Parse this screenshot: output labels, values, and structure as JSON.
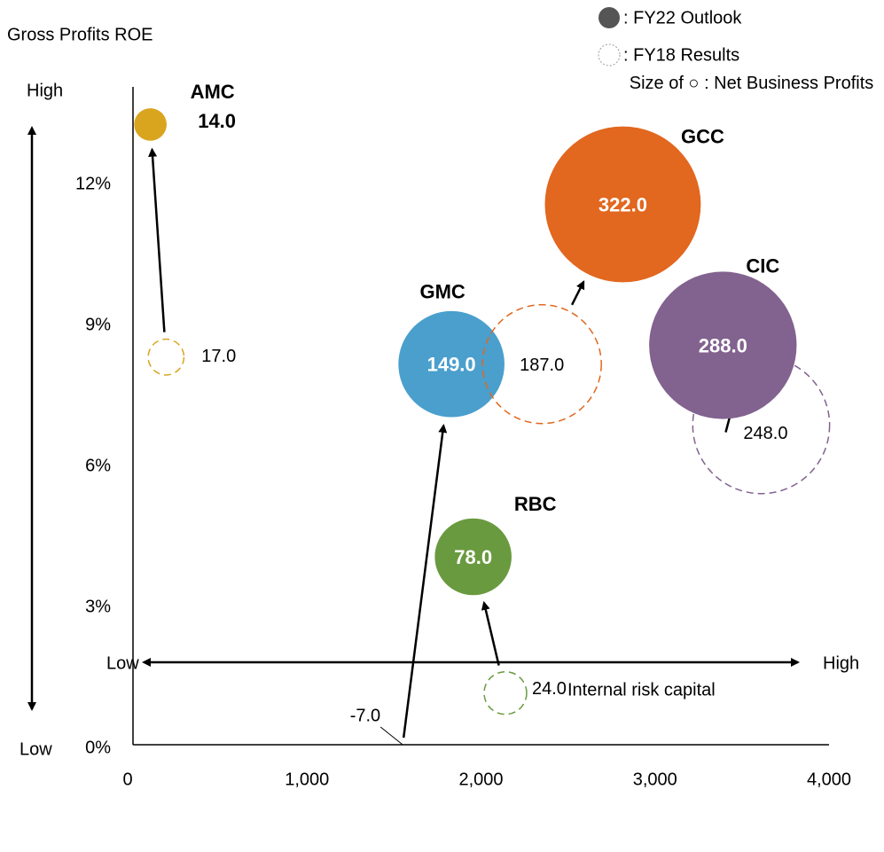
{
  "chart_data": {
    "type": "bubble",
    "y_label": "Gross Profits ROE",
    "x_label": "Internal risk capital",
    "y_high": "High",
    "y_low": "Low",
    "x_low": "Low",
    "x_high": "High",
    "size_legend": "Size of ○ : Net Business Profits",
    "categories": [
      "AMC",
      "GMC",
      "GCC",
      "CIC",
      "RBC"
    ],
    "colors": [
      "#d9a51f",
      "#4a9fcd",
      "#e2671f",
      "#82628f",
      "#6a9a3f"
    ],
    "xlim": [
      0,
      4000
    ],
    "xticks": [
      0,
      {
        "value": 1000,
        "label": "1,000"
      },
      {
        "value": 2000,
        "label": "2,000"
      },
      {
        "value": 3000,
        "label": "3,000"
      },
      {
        "value": 4000,
        "label": "4,000"
      }
    ],
    "ylim": [
      0,
      14
    ],
    "yticks": [
      {
        "value": 0,
        "label": "0%"
      },
      {
        "value": 3,
        "label": "3%"
      },
      {
        "value": 6,
        "label": "6%"
      },
      {
        "value": 9,
        "label": "9%"
      },
      {
        "value": 12,
        "label": "12%"
      }
    ],
    "series": [
      {
        "name": ": FY22 Outlook",
        "style": "filled",
        "x": [
          100,
          1830,
          2815,
          3390,
          1955
        ],
        "values": [
          13.2,
          8.1,
          11.5,
          8.5,
          4.0
        ],
        "sizes": [
          14,
          149,
          322,
          288,
          78
        ],
        "size_labels": [
          "14.0",
          "149.0",
          "322.0",
          "288.0",
          "78.0"
        ]
      },
      {
        "name": ": FY18 Results",
        "style": "dashed",
        "x": [
          190,
          1550,
          2350,
          3610,
          2140
        ],
        "values": [
          8.25,
          0,
          8.1,
          6.8,
          1.1
        ],
        "sizes": [
          17,
          -7,
          187,
          248,
          24
        ],
        "size_labels": [
          "17.0",
          "-7.0",
          "187.0",
          "248.0",
          "24.0"
        ]
      }
    ]
  }
}
